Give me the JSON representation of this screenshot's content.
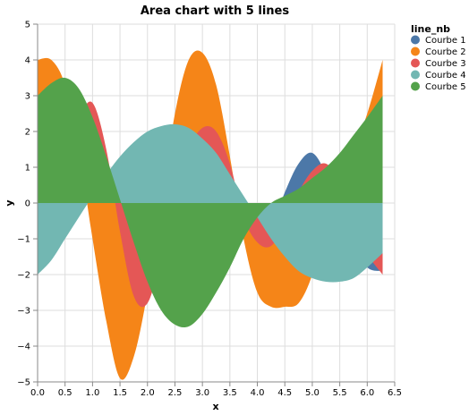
{
  "chart_data": {
    "type": "area",
    "title": "Area chart with 5 lines",
    "xlabel": "x",
    "ylabel": "y",
    "xlim": [
      0,
      6.5
    ],
    "ylim": [
      -5,
      5
    ],
    "x_ticks": [
      "0.0",
      "0.5",
      "1.0",
      "1.5",
      "2.0",
      "2.5",
      "3.0",
      "3.5",
      "4.0",
      "4.5",
      "5.0",
      "5.5",
      "6.0",
      "6.5"
    ],
    "y_ticks": [
      "5",
      "4",
      "3",
      "2",
      "1",
      "0",
      "−1",
      "−2",
      "−3",
      "−4",
      "−5"
    ],
    "grid": true,
    "legend": {
      "title": "line_nb",
      "position": "right"
    },
    "x": [
      0.0,
      0.25,
      0.5,
      0.75,
      1.0,
      1.25,
      1.5,
      1.75,
      2.0,
      2.25,
      2.5,
      2.75,
      3.0,
      3.25,
      3.5,
      3.75,
      4.0,
      4.25,
      4.5,
      4.75,
      5.0,
      5.25,
      5.5,
      5.75,
      6.0,
      6.28
    ],
    "series": [
      {
        "name": "Courbe 1",
        "color": "#4c78a8",
        "values": [
          0.0,
          0.5,
          1.2,
          1.8,
          1.9,
          1.2,
          0.1,
          -1.2,
          -2.0,
          -1.6,
          -0.5,
          0.6,
          1.5,
          1.6,
          0.8,
          -0.6,
          -1.3,
          -0.7,
          0.3,
          1.1,
          1.4,
          0.8,
          -0.3,
          -1.1,
          -1.8,
          -1.9
        ]
      },
      {
        "name": "Courbe 2",
        "color": "#f58518",
        "values": [
          4.0,
          4.0,
          3.3,
          1.5,
          -1.0,
          -3.3,
          -4.9,
          -4.3,
          -2.5,
          0.0,
          2.5,
          4.0,
          4.2,
          3.3,
          1.3,
          -1.0,
          -2.5,
          -2.9,
          -2.9,
          -2.8,
          -2.0,
          -0.5,
          0.5,
          1.5,
          2.5,
          4.0
        ]
      },
      {
        "name": "Courbe 3",
        "color": "#e45756",
        "values": [
          0.0,
          0.7,
          1.5,
          2.4,
          2.8,
          1.5,
          -0.8,
          -2.6,
          -2.8,
          -1.5,
          0.2,
          1.5,
          2.1,
          2.0,
          1.1,
          -0.4,
          -1.1,
          -1.2,
          -0.6,
          0.3,
          0.9,
          1.1,
          0.6,
          -0.4,
          -1.4,
          -2.0
        ]
      },
      {
        "name": "Courbe 4",
        "color": "#72b7b2",
        "values": [
          -2.0,
          -1.6,
          -1.0,
          -0.4,
          0.2,
          0.8,
          1.3,
          1.7,
          2.0,
          2.15,
          2.2,
          2.1,
          1.8,
          1.4,
          0.8,
          0.2,
          -0.4,
          -1.0,
          -1.5,
          -1.9,
          -2.1,
          -2.2,
          -2.2,
          -2.1,
          -1.8,
          -1.4
        ]
      },
      {
        "name": "Courbe 5",
        "color": "#54a24b",
        "values": [
          3.0,
          3.35,
          3.5,
          3.2,
          2.4,
          1.3,
          0.1,
          -1.1,
          -2.2,
          -3.0,
          -3.4,
          -3.45,
          -3.1,
          -2.5,
          -1.8,
          -1.0,
          -0.4,
          0.0,
          0.2,
          0.4,
          0.7,
          1.0,
          1.4,
          1.9,
          2.4,
          3.0
        ]
      }
    ]
  }
}
